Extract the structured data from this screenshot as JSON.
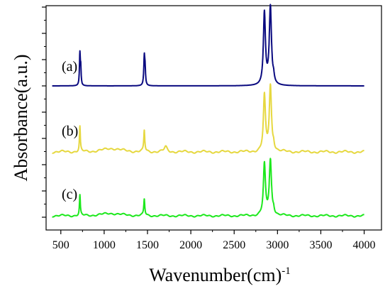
{
  "chart_data": {
    "type": "line",
    "title": "",
    "xlabel": "Wavenumber(cm)",
    "xlabel_superscript": "-1",
    "ylabel": "Absorbance(a.u.)",
    "xlim": [
      330,
      4200
    ],
    "x_ticks": [
      500,
      1000,
      1500,
      2000,
      2500,
      3000,
      3500,
      4000
    ],
    "x_tick_labels": [
      "500",
      "1000",
      "1500",
      "2000",
      "2500",
      "3000",
      "3500",
      "4000"
    ],
    "y_ticks_unlabeled": true,
    "grid": false,
    "legend": "none",
    "series": [
      {
        "label": "(a)",
        "color": "#0a0a80",
        "x_range": [
          400,
          4000
        ],
        "baseline_y": 0.0,
        "wobble": 0,
        "peaks": [
          {
            "x": 720,
            "height": 0.45,
            "width": 6
          },
          {
            "x": 730,
            "height": 0.22,
            "width": 5
          },
          {
            "x": 1463,
            "height": 0.4,
            "width": 7
          },
          {
            "x": 1472,
            "height": 0.2,
            "width": 6
          },
          {
            "x": 2849,
            "height": 1.02,
            "width": 14
          },
          {
            "x": 2918,
            "height": 1.1,
            "width": 15
          },
          {
            "x": 2955,
            "height": 0.08,
            "width": 10
          }
        ]
      },
      {
        "label": "(b)",
        "color": "#e6d840",
        "x_range": [
          400,
          4000
        ],
        "baseline_y": 0.0,
        "wobble": 1,
        "peaks": [
          {
            "x": 720,
            "height": 0.35,
            "width": 6
          },
          {
            "x": 1463,
            "height": 0.3,
            "width": 7
          },
          {
            "x": 1710,
            "height": 0.07,
            "width": 20
          },
          {
            "x": 1090,
            "height": 0.05,
            "width": 120
          },
          {
            "x": 2849,
            "height": 0.78,
            "width": 14
          },
          {
            "x": 2918,
            "height": 0.92,
            "width": 15
          },
          {
            "x": 2955,
            "height": 0.08,
            "width": 10
          }
        ]
      },
      {
        "label": "(c)",
        "color": "#1de81d",
        "x_range": [
          400,
          4000
        ],
        "baseline_y": 0.0,
        "wobble": 1,
        "peaks": [
          {
            "x": 720,
            "height": 0.33,
            "width": 6
          },
          {
            "x": 1463,
            "height": 0.27,
            "width": 7
          },
          {
            "x": 1080,
            "height": 0.04,
            "width": 130
          },
          {
            "x": 2849,
            "height": 0.83,
            "width": 14
          },
          {
            "x": 2918,
            "height": 0.9,
            "width": 15
          },
          {
            "x": 2955,
            "height": 0.08,
            "width": 10
          }
        ]
      }
    ]
  }
}
